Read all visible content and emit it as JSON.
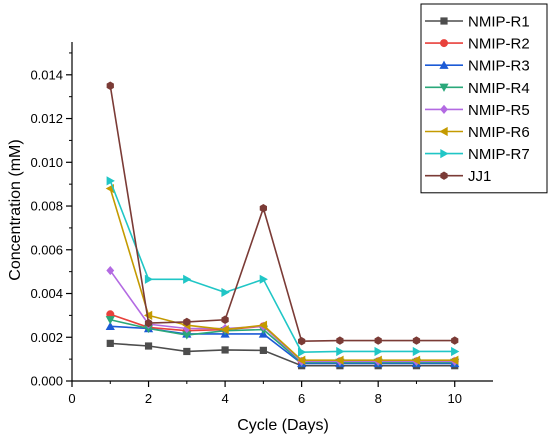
{
  "chart_data": {
    "type": "line",
    "xlabel": "Cycle (Days)",
    "ylabel": "Concentration (mM)",
    "xlim": [
      0,
      11
    ],
    "ylim": [
      0,
      0.0155
    ],
    "xticks": [
      0,
      2,
      4,
      6,
      8,
      10
    ],
    "xtick_labels": [
      "0",
      "2",
      "4",
      "6",
      "8",
      "10"
    ],
    "yticks": [
      0,
      0.002,
      0.004,
      0.006,
      0.008,
      0.01,
      0.012,
      0.014
    ],
    "ytick_labels": [
      "0.000",
      "0.002",
      "0.004",
      "0.006",
      "0.008",
      "0.010",
      "0.012",
      "0.014"
    ],
    "grid": false,
    "legend_position": "top-right",
    "x": [
      1,
      2,
      3,
      4,
      5,
      6,
      7,
      8,
      9,
      10
    ],
    "series": [
      {
        "name": "NMIP-R1",
        "color": "#4d4d4d",
        "marker": "square",
        "values": [
          0.00172,
          0.0016,
          0.00135,
          0.00142,
          0.0014,
          0.0007,
          0.0007,
          0.0007,
          0.0007,
          0.0007
        ]
      },
      {
        "name": "NMIP-R2",
        "color": "#e8413c",
        "marker": "circle",
        "values": [
          0.00305,
          0.00245,
          0.0023,
          0.00235,
          0.0025,
          0.0009,
          0.0009,
          0.0009,
          0.0009,
          0.0009
        ]
      },
      {
        "name": "NMIP-R3",
        "color": "#1c5bd6",
        "marker": "triangle-up",
        "values": [
          0.0025,
          0.0024,
          0.00215,
          0.00215,
          0.00215,
          0.0008,
          0.0008,
          0.0008,
          0.0008,
          0.0008
        ]
      },
      {
        "name": "NMIP-R4",
        "color": "#2aa87a",
        "marker": "triangle-down",
        "values": [
          0.0028,
          0.0024,
          0.0021,
          0.0023,
          0.00235,
          0.00085,
          0.00085,
          0.00085,
          0.00085,
          0.00085
        ]
      },
      {
        "name": "NMIP-R5",
        "color": "#b36ae2",
        "marker": "diamond",
        "values": [
          0.00505,
          0.0026,
          0.0024,
          0.0024,
          0.0025,
          0.0009,
          0.0009,
          0.0009,
          0.0009,
          0.0009
        ]
      },
      {
        "name": "NMIP-R6",
        "color": "#c49a00",
        "marker": "triangle-left",
        "values": [
          0.0088,
          0.003,
          0.00255,
          0.00235,
          0.00255,
          0.00095,
          0.00095,
          0.00095,
          0.00095,
          0.00095
        ]
      },
      {
        "name": "NMIP-R7",
        "color": "#20c6c6",
        "marker": "triangle-right",
        "values": [
          0.00915,
          0.00465,
          0.00465,
          0.00405,
          0.00465,
          0.00132,
          0.00135,
          0.00135,
          0.00135,
          0.00135
        ]
      },
      {
        "name": "JJ1",
        "color": "#7b3b36",
        "marker": "hexagon",
        "values": [
          0.0135,
          0.00265,
          0.0027,
          0.0028,
          0.0079,
          0.00182,
          0.00185,
          0.00185,
          0.00185,
          0.00185
        ]
      }
    ]
  }
}
